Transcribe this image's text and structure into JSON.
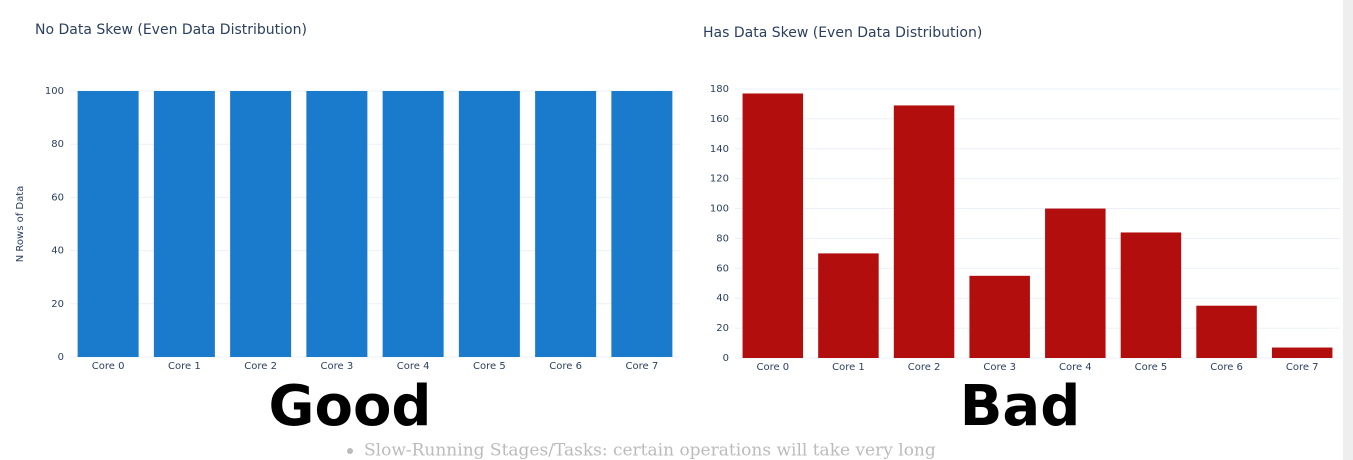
{
  "chart_data": [
    {
      "type": "bar",
      "title": "No Data Skew (Even Data Distribution)",
      "y_label": "N Rows of Data",
      "categories": [
        "Core 0",
        "Core 1",
        "Core 2",
        "Core 3",
        "Core 4",
        "Core 5",
        "Core 6",
        "Core 7"
      ],
      "values": [
        100,
        100,
        100,
        100,
        100,
        100,
        100,
        100
      ],
      "color": "#1a7bcd",
      "ylim": [
        0,
        100
      ],
      "yticks": [
        0,
        20,
        40,
        60,
        80,
        100
      ],
      "grid": true,
      "annotation": "Good"
    },
    {
      "type": "bar",
      "title": "Has Data Skew (Even Data Distribution)",
      "categories": [
        "Core 0",
        "Core 1",
        "Core 2",
        "Core 3",
        "Core 4",
        "Core 5",
        "Core 6",
        "Core 7"
      ],
      "values": [
        177,
        70,
        169,
        55,
        100,
        84,
        35,
        7
      ],
      "color": "#b30e0e",
      "ylim": [
        0,
        180
      ],
      "yticks": [
        0,
        20,
        40,
        60,
        80,
        100,
        120,
        140,
        160,
        180
      ],
      "grid": true,
      "annotation": "Bad"
    }
  ],
  "background_text": "Slow-Running Stages/Tasks: certain operations will take very long"
}
